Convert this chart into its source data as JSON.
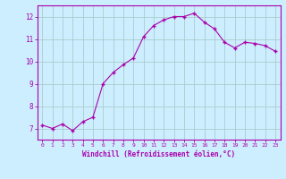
{
  "x": [
    0,
    1,
    2,
    3,
    4,
    5,
    6,
    7,
    8,
    9,
    10,
    11,
    12,
    13,
    14,
    15,
    16,
    17,
    18,
    19,
    20,
    21,
    22,
    23
  ],
  "y": [
    7.15,
    7.0,
    7.2,
    6.9,
    7.3,
    7.5,
    9.0,
    9.5,
    9.85,
    10.15,
    11.1,
    11.6,
    11.85,
    12.0,
    12.0,
    12.15,
    11.75,
    11.45,
    10.85,
    10.6,
    10.85,
    10.8,
    10.7,
    10.45
  ],
  "line_color": "#aa00aa",
  "marker_color": "#aa00aa",
  "bg_color": "#cceeff",
  "grid_color": "#aacccc",
  "xlabel": "Windchill (Refroidissement éolien,°C)",
  "xlim": [
    -0.5,
    23.5
  ],
  "ylim": [
    6.5,
    12.5
  ],
  "yticks": [
    7,
    8,
    9,
    10,
    11,
    12
  ],
  "xticks": [
    0,
    1,
    2,
    3,
    4,
    5,
    6,
    7,
    8,
    9,
    10,
    11,
    12,
    13,
    14,
    15,
    16,
    17,
    18,
    19,
    20,
    21,
    22,
    23
  ],
  "tick_color": "#aa00aa",
  "label_color": "#aa00aa",
  "spine_color": "#aa00aa"
}
